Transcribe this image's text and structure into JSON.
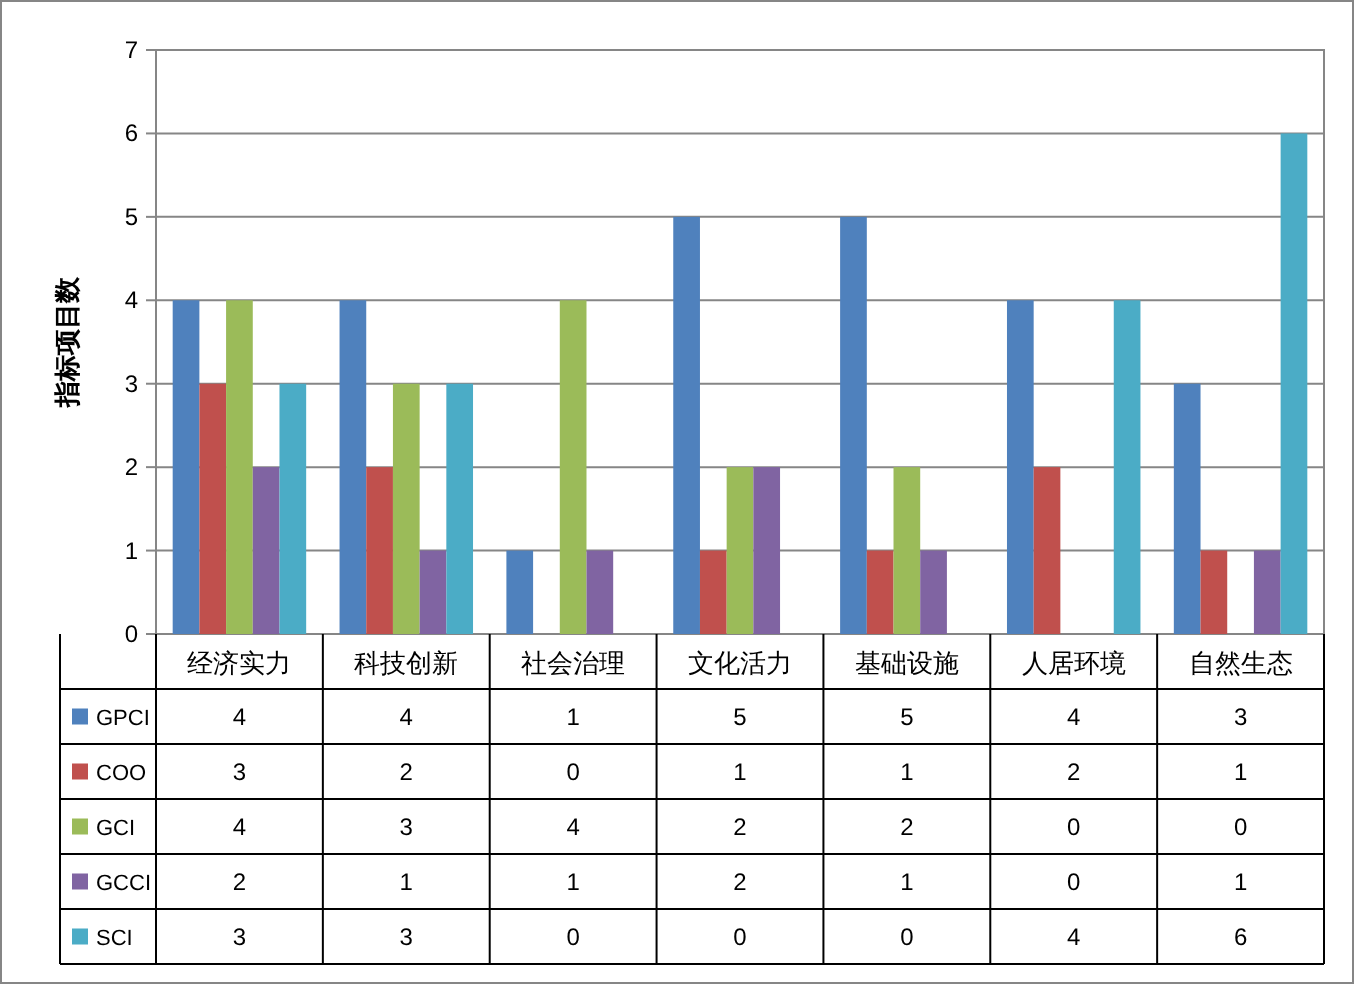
{
  "chart_data": {
    "type": "bar",
    "ylabel": "指标项目数",
    "categories": [
      "经济实力",
      "科技创新",
      "社会治理",
      "文化活力",
      "基础设施",
      "人居环境",
      "自然生态"
    ],
    "series": [
      {
        "name": "GPCI",
        "color": "#4f81bd",
        "values": [
          4,
          4,
          1,
          5,
          5,
          4,
          3
        ]
      },
      {
        "name": "COO",
        "color": "#c0504d",
        "values": [
          3,
          2,
          0,
          1,
          1,
          2,
          1
        ]
      },
      {
        "name": "GCI",
        "color": "#9bbb59",
        "values": [
          4,
          3,
          4,
          2,
          2,
          0,
          0
        ]
      },
      {
        "name": "GCCI",
        "color": "#8064a2",
        "values": [
          2,
          1,
          1,
          2,
          1,
          0,
          1
        ]
      },
      {
        "name": "SCI",
        "color": "#4bacc6",
        "values": [
          3,
          3,
          0,
          0,
          0,
          4,
          6
        ]
      }
    ],
    "ylim": [
      0,
      7
    ],
    "yticks": [
      0,
      1,
      2,
      3,
      4,
      5,
      6,
      7
    ],
    "grid": "y",
    "legend": "bottom",
    "data_labels": true
  }
}
